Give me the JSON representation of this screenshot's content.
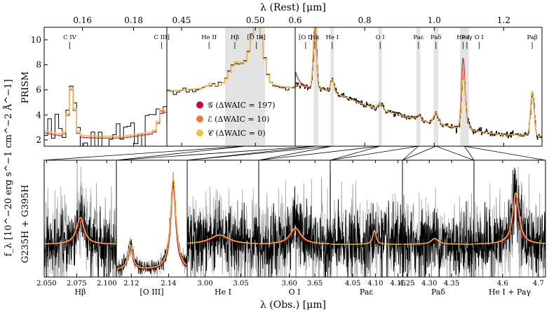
{
  "figure": {
    "top_axis_title": "λ (Rest) [μm]",
    "bottom_axis_title": "λ (Obs.) [μm]",
    "ylabel_units": "f_λ [10^−20 erg s^−1 cm^−2 Å^−1]",
    "ylabel_prism": "PRISM",
    "ylabel_grating": "G235H + G395H"
  },
  "chart_data": [
    {
      "type": "line",
      "id": "prism",
      "title": "PRISM",
      "ylim": [
        1.5,
        11
      ],
      "yticks": [
        2,
        4,
        6,
        8,
        10
      ],
      "top_axis_panels": [
        {
          "range": [
            0.145,
            0.193
          ],
          "ticks": [
            0.16,
            0.18
          ],
          "tick_labels": [
            "0.16",
            "0.18"
          ]
        },
        {
          "range": [
            0.44,
            0.527
          ],
          "ticks": [
            0.45,
            0.5
          ],
          "tick_labels": [
            "0.45",
            "0.50"
          ]
        },
        {
          "range": [
            0.6,
            1.31
          ],
          "ticks": [
            0.6,
            0.8,
            1.0,
            1.2
          ],
          "tick_labels": [
            "0.6",
            "0.8",
            "1.0",
            "1.2"
          ]
        }
      ],
      "line_markers": [
        {
          "panel": 0,
          "rest": 0.155,
          "label": "C IV"
        },
        {
          "panel": 0,
          "rest": 0.191,
          "label": "C III]"
        },
        {
          "panel": 1,
          "rest": 0.4686,
          "label": "He II"
        },
        {
          "panel": 1,
          "rest": 0.4861,
          "label": "Hβ"
        },
        {
          "panel": 1,
          "rest": 0.5007,
          "label": "[O III]"
        },
        {
          "panel": 2,
          "rest": 0.63,
          "label": "[O I]"
        },
        {
          "panel": 2,
          "rest": 0.6563,
          "label": "Hα"
        },
        {
          "panel": 2,
          "rest": 0.7065,
          "label": "He I"
        },
        {
          "panel": 2,
          "rest": 0.8446,
          "label": "O I"
        },
        {
          "panel": 2,
          "rest": 0.9546,
          "label": "Paε"
        },
        {
          "panel": 2,
          "rest": 1.005,
          "label": "Paδ"
        },
        {
          "panel": 2,
          "rest": 1.083,
          "label": "He I"
        },
        {
          "panel": 2,
          "rest": 1.094,
          "label": "Paγ"
        },
        {
          "panel": 2,
          "rest": 1.129,
          "label": "O I"
        },
        {
          "panel": 2,
          "rest": 1.282,
          "label": "Paβ"
        }
      ],
      "shaded_regions_rest": [
        [
          0.4795,
          0.5065
        ],
        [
          0.6535,
          0.6665
        ],
        [
          0.7015,
          0.7115
        ],
        [
          0.8395,
          0.8495
        ],
        [
          0.949,
          0.96
        ],
        [
          0.9985,
          1.0115
        ],
        [
          1.0745,
          1.0995
        ]
      ],
      "legend": [
        {
          "symbol": "𝒢",
          "text": "(ΔWAIC = 197)",
          "color": "#d7002c"
        },
        {
          "symbol": "ℰ",
          "text": "(ΔWAIC = 10)",
          "color": "#f47a3a"
        },
        {
          "symbol": "𝒞",
          "text": "(ΔWAIC = 0)",
          "color": "#f6bf39"
        }
      ],
      "series": [
        {
          "name": "data",
          "color": "#000000"
        },
        {
          "name": "𝒢",
          "color": "#d7002c"
        },
        {
          "name": "ℰ",
          "color": "#f47a3a"
        },
        {
          "name": "𝒞",
          "color": "#f6bf39"
        }
      ],
      "continuum": {
        "uv": [
          [
            0.145,
            2.7
          ],
          [
            0.15,
            2.5
          ],
          [
            0.155,
            2.4
          ],
          [
            0.165,
            2.3
          ],
          [
            0.175,
            2.3
          ],
          [
            0.185,
            2.6
          ],
          [
            0.193,
            2.6
          ]
        ],
        "opt": [
          [
            0.44,
            5.9
          ],
          [
            0.46,
            6.1
          ],
          [
            0.475,
            6.3
          ],
          [
            0.5,
            6.6
          ],
          [
            0.527,
            6.1
          ]
        ],
        "nir": [
          [
            0.6,
            6.4
          ],
          [
            0.65,
            6.2
          ],
          [
            0.7,
            5.9
          ],
          [
            0.8,
            4.8
          ],
          [
            0.9,
            4.0
          ],
          [
            1.0,
            3.3
          ],
          [
            1.1,
            2.8
          ],
          [
            1.2,
            2.4
          ],
          [
            1.28,
            2.4
          ],
          [
            1.31,
            2.3
          ]
        ]
      }
    },
    {
      "type": "line",
      "id": "grating",
      "title": "G235H + G395H",
      "panels": [
        {
          "label": "Hβ",
          "xlim": [
            2.048,
            2.108
          ],
          "ticks": [
            2.05,
            2.075,
            2.1
          ],
          "tick_labels": [
            "2.050",
            "2.075",
            "2.100"
          ],
          "peaks": [
            {
              "x": 2.078,
              "height": 0.23,
              "width": 0.0035
            }
          ]
        },
        {
          "label": "[O III]",
          "xlim": [
            2.112,
            2.15
          ],
          "ticks": [
            2.12,
            2.14
          ],
          "tick_labels": [
            "2.12",
            "2.14"
          ],
          "peaks": [
            {
              "x": 2.1195,
              "height": 0.2,
              "width": 0.0014
            },
            {
              "x": 2.1425,
              "height": 0.75,
              "width": 0.0016
            }
          ]
        },
        {
          "label": "He I",
          "xlim": [
            2.975,
            3.075
          ],
          "ticks": [
            3.0,
            3.05
          ],
          "tick_labels": [
            "3.00",
            "3.05"
          ],
          "peaks": [
            {
              "x": 3.02,
              "height": 0.08,
              "width": 0.015
            }
          ]
        },
        {
          "label": "O I",
          "xlim": [
            3.54,
            3.68
          ],
          "ticks": [
            3.6,
            3.65
          ],
          "tick_labels": [
            "3.60",
            "3.65"
          ],
          "peaks": [
            {
              "x": 3.612,
              "height": 0.14,
              "width": 0.012
            }
          ]
        },
        {
          "label": "Paε",
          "xlim": [
            4.0,
            4.16
          ],
          "ticks": [
            4.05,
            4.1,
            4.15
          ],
          "tick_labels": [
            "4.05",
            "4.10",
            "4.15"
          ],
          "peaks": [
            {
              "x": 4.098,
              "height": 0.12,
              "width": 0.004
            }
          ]
        },
        {
          "label": "Paδ",
          "xlim": [
            4.24,
            4.4
          ],
          "ticks": [
            4.25,
            4.3,
            4.35
          ],
          "tick_labels": [
            "4.25",
            "4.30",
            "4.35"
          ],
          "peaks": [
            {
              "x": 4.312,
              "height": 0.05,
              "width": 0.009
            }
          ]
        },
        {
          "label": "He I + Paγ",
          "xlim": [
            4.52,
            4.72
          ],
          "ticks": [
            4.6,
            4.7
          ],
          "tick_labels": [
            "4.6",
            "4.7"
          ],
          "peaks": [
            {
              "x": 4.637,
              "height": 0.44,
              "width": 0.01
            }
          ]
        }
      ]
    }
  ]
}
